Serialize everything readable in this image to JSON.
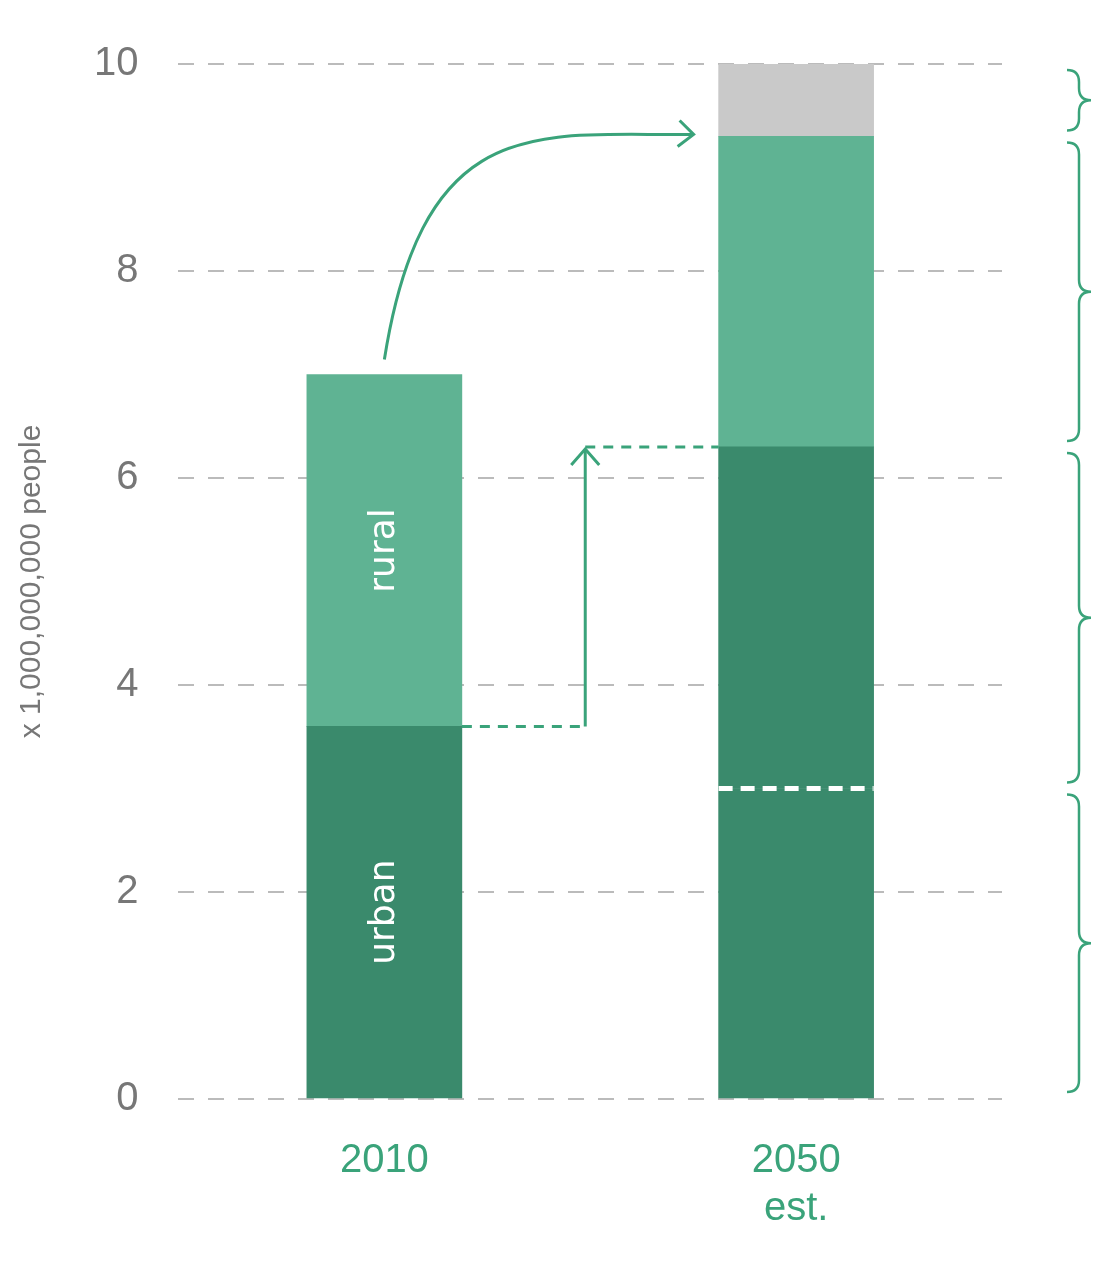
{
  "chart_data": {
    "type": "bar",
    "stacked": true,
    "ylabel": "x 1,000,000,000 people",
    "categories": [
      "2010",
      "2050\nest."
    ],
    "ylim": [
      0,
      10
    ],
    "yticks": [
      0,
      2,
      4,
      6,
      8,
      10
    ],
    "grid": "y",
    "series": [
      {
        "name": "urban",
        "color": "#3a8a6c",
        "values": [
          3.6,
          3.0
        ]
      },
      {
        "color": "#3a8a6c",
        "values": [
          null,
          3.3
        ]
      },
      {
        "name": "rural",
        "color": "#5fb393",
        "values": [
          3.4,
          3.0
        ]
      },
      {
        "color": "#c9c9c9",
        "values": [
          null,
          0.7
        ]
      }
    ]
  }
}
